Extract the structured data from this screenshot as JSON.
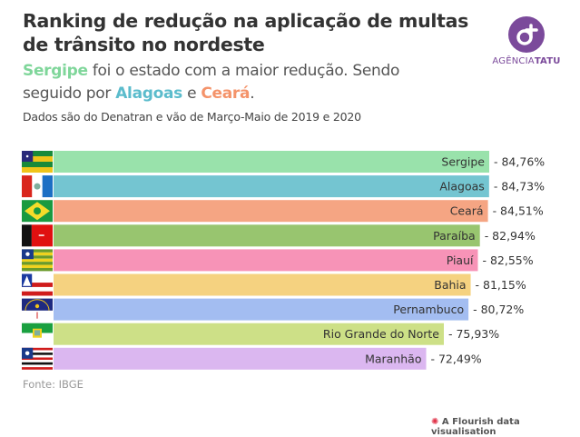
{
  "header": {
    "title": "Ranking de redução na aplicação de multas de trânsito no nordeste",
    "subtitle_parts": [
      {
        "text": "Sergipe",
        "color": "#7fd69a",
        "bold": true
      },
      {
        "text": " foi o estado com a maior redução. Sendo seguido por ",
        "color": "#555555",
        "bold": false
      },
      {
        "text": "Alagoas",
        "color": "#5bbccc",
        "bold": true
      },
      {
        "text": " e ",
        "color": "#555555",
        "bold": false
      },
      {
        "text": "Ceará",
        "color": "#f4936a",
        "bold": true
      },
      {
        "text": ".",
        "color": "#555555",
        "bold": false
      }
    ],
    "note": "Dados são do Denatran e vão de Março-Maio de 2019 e 2020"
  },
  "logo": {
    "text_light": "AGÊNCIA",
    "text_bold": "TATU",
    "color": "#7b4a9b"
  },
  "chart_data": {
    "type": "bar",
    "orientation": "horizontal",
    "title": "Ranking de redução na aplicação de multas de trânsito no nordeste",
    "categories": [
      "Sergipe",
      "Alagoas",
      "Ceará",
      "Paraíba",
      "Piauí",
      "Bahia",
      "Pernambuco",
      "Rio Grande do Norte",
      "Maranhão"
    ],
    "values": [
      84.76,
      84.73,
      84.51,
      82.94,
      82.55,
      81.15,
      80.72,
      75.93,
      72.49
    ],
    "value_labels": [
      "- 84,76%",
      "- 84,73%",
      "- 84,51%",
      "- 82,94%",
      "- 82,55%",
      "- 81,15%",
      "- 80,72%",
      "- 75,93%",
      "- 72,49%"
    ],
    "colors": [
      "#99e2ab",
      "#74c5d1",
      "#f5a583",
      "#98c56f",
      "#f793b7",
      "#f5d280",
      "#a3bdf1",
      "#cde087",
      "#dbb7f0"
    ],
    "flags": [
      "flag-sergipe",
      "flag-alagoas",
      "flag-ceara",
      "flag-paraiba",
      "flag-piaui",
      "flag-bahia",
      "flag-pernambuco",
      "flag-rio-grande-do-norte",
      "flag-maranhao"
    ],
    "xlim": [
      0,
      84.76
    ],
    "xlabel": "",
    "ylabel": "",
    "grid": false
  },
  "footer": {
    "source": "Fonte: IBGE",
    "flourish": "A Flourish data visualisation"
  }
}
